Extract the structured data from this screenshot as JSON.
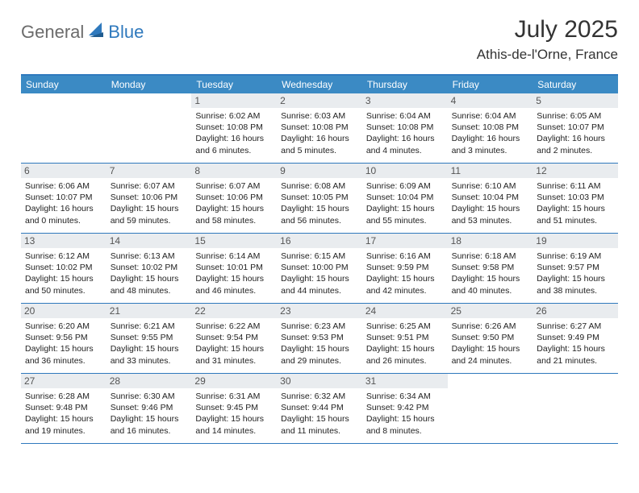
{
  "brand": {
    "general": "General",
    "blue": "Blue",
    "accent_color": "#2f79bd",
    "general_color": "#6b6b6b"
  },
  "title": "July 2025",
  "location": "Athis-de-l'Orne, France",
  "colors": {
    "header_bg": "#3b8ac4",
    "header_text": "#ffffff",
    "daynum_bg": "#e9ecef",
    "border": "#2f79bd",
    "page_bg": "#ffffff",
    "text": "#222222"
  },
  "weekdays": [
    "Sunday",
    "Monday",
    "Tuesday",
    "Wednesday",
    "Thursday",
    "Friday",
    "Saturday"
  ],
  "weeks": [
    [
      {
        "blank": true
      },
      {
        "blank": true
      },
      {
        "num": "1",
        "sunrise": "Sunrise: 6:02 AM",
        "sunset": "Sunset: 10:08 PM",
        "d1": "Daylight: 16 hours",
        "d2": "and 6 minutes."
      },
      {
        "num": "2",
        "sunrise": "Sunrise: 6:03 AM",
        "sunset": "Sunset: 10:08 PM",
        "d1": "Daylight: 16 hours",
        "d2": "and 5 minutes."
      },
      {
        "num": "3",
        "sunrise": "Sunrise: 6:04 AM",
        "sunset": "Sunset: 10:08 PM",
        "d1": "Daylight: 16 hours",
        "d2": "and 4 minutes."
      },
      {
        "num": "4",
        "sunrise": "Sunrise: 6:04 AM",
        "sunset": "Sunset: 10:08 PM",
        "d1": "Daylight: 16 hours",
        "d2": "and 3 minutes."
      },
      {
        "num": "5",
        "sunrise": "Sunrise: 6:05 AM",
        "sunset": "Sunset: 10:07 PM",
        "d1": "Daylight: 16 hours",
        "d2": "and 2 minutes."
      }
    ],
    [
      {
        "num": "6",
        "sunrise": "Sunrise: 6:06 AM",
        "sunset": "Sunset: 10:07 PM",
        "d1": "Daylight: 16 hours",
        "d2": "and 0 minutes."
      },
      {
        "num": "7",
        "sunrise": "Sunrise: 6:07 AM",
        "sunset": "Sunset: 10:06 PM",
        "d1": "Daylight: 15 hours",
        "d2": "and 59 minutes."
      },
      {
        "num": "8",
        "sunrise": "Sunrise: 6:07 AM",
        "sunset": "Sunset: 10:06 PM",
        "d1": "Daylight: 15 hours",
        "d2": "and 58 minutes."
      },
      {
        "num": "9",
        "sunrise": "Sunrise: 6:08 AM",
        "sunset": "Sunset: 10:05 PM",
        "d1": "Daylight: 15 hours",
        "d2": "and 56 minutes."
      },
      {
        "num": "10",
        "sunrise": "Sunrise: 6:09 AM",
        "sunset": "Sunset: 10:04 PM",
        "d1": "Daylight: 15 hours",
        "d2": "and 55 minutes."
      },
      {
        "num": "11",
        "sunrise": "Sunrise: 6:10 AM",
        "sunset": "Sunset: 10:04 PM",
        "d1": "Daylight: 15 hours",
        "d2": "and 53 minutes."
      },
      {
        "num": "12",
        "sunrise": "Sunrise: 6:11 AM",
        "sunset": "Sunset: 10:03 PM",
        "d1": "Daylight: 15 hours",
        "d2": "and 51 minutes."
      }
    ],
    [
      {
        "num": "13",
        "sunrise": "Sunrise: 6:12 AM",
        "sunset": "Sunset: 10:02 PM",
        "d1": "Daylight: 15 hours",
        "d2": "and 50 minutes."
      },
      {
        "num": "14",
        "sunrise": "Sunrise: 6:13 AM",
        "sunset": "Sunset: 10:02 PM",
        "d1": "Daylight: 15 hours",
        "d2": "and 48 minutes."
      },
      {
        "num": "15",
        "sunrise": "Sunrise: 6:14 AM",
        "sunset": "Sunset: 10:01 PM",
        "d1": "Daylight: 15 hours",
        "d2": "and 46 minutes."
      },
      {
        "num": "16",
        "sunrise": "Sunrise: 6:15 AM",
        "sunset": "Sunset: 10:00 PM",
        "d1": "Daylight: 15 hours",
        "d2": "and 44 minutes."
      },
      {
        "num": "17",
        "sunrise": "Sunrise: 6:16 AM",
        "sunset": "Sunset: 9:59 PM",
        "d1": "Daylight: 15 hours",
        "d2": "and 42 minutes."
      },
      {
        "num": "18",
        "sunrise": "Sunrise: 6:18 AM",
        "sunset": "Sunset: 9:58 PM",
        "d1": "Daylight: 15 hours",
        "d2": "and 40 minutes."
      },
      {
        "num": "19",
        "sunrise": "Sunrise: 6:19 AM",
        "sunset": "Sunset: 9:57 PM",
        "d1": "Daylight: 15 hours",
        "d2": "and 38 minutes."
      }
    ],
    [
      {
        "num": "20",
        "sunrise": "Sunrise: 6:20 AM",
        "sunset": "Sunset: 9:56 PM",
        "d1": "Daylight: 15 hours",
        "d2": "and 36 minutes."
      },
      {
        "num": "21",
        "sunrise": "Sunrise: 6:21 AM",
        "sunset": "Sunset: 9:55 PM",
        "d1": "Daylight: 15 hours",
        "d2": "and 33 minutes."
      },
      {
        "num": "22",
        "sunrise": "Sunrise: 6:22 AM",
        "sunset": "Sunset: 9:54 PM",
        "d1": "Daylight: 15 hours",
        "d2": "and 31 minutes."
      },
      {
        "num": "23",
        "sunrise": "Sunrise: 6:23 AM",
        "sunset": "Sunset: 9:53 PM",
        "d1": "Daylight: 15 hours",
        "d2": "and 29 minutes."
      },
      {
        "num": "24",
        "sunrise": "Sunrise: 6:25 AM",
        "sunset": "Sunset: 9:51 PM",
        "d1": "Daylight: 15 hours",
        "d2": "and 26 minutes."
      },
      {
        "num": "25",
        "sunrise": "Sunrise: 6:26 AM",
        "sunset": "Sunset: 9:50 PM",
        "d1": "Daylight: 15 hours",
        "d2": "and 24 minutes."
      },
      {
        "num": "26",
        "sunrise": "Sunrise: 6:27 AM",
        "sunset": "Sunset: 9:49 PM",
        "d1": "Daylight: 15 hours",
        "d2": "and 21 minutes."
      }
    ],
    [
      {
        "num": "27",
        "sunrise": "Sunrise: 6:28 AM",
        "sunset": "Sunset: 9:48 PM",
        "d1": "Daylight: 15 hours",
        "d2": "and 19 minutes."
      },
      {
        "num": "28",
        "sunrise": "Sunrise: 6:30 AM",
        "sunset": "Sunset: 9:46 PM",
        "d1": "Daylight: 15 hours",
        "d2": "and 16 minutes."
      },
      {
        "num": "29",
        "sunrise": "Sunrise: 6:31 AM",
        "sunset": "Sunset: 9:45 PM",
        "d1": "Daylight: 15 hours",
        "d2": "and 14 minutes."
      },
      {
        "num": "30",
        "sunrise": "Sunrise: 6:32 AM",
        "sunset": "Sunset: 9:44 PM",
        "d1": "Daylight: 15 hours",
        "d2": "and 11 minutes."
      },
      {
        "num": "31",
        "sunrise": "Sunrise: 6:34 AM",
        "sunset": "Sunset: 9:42 PM",
        "d1": "Daylight: 15 hours",
        "d2": "and 8 minutes."
      },
      {
        "blank": true
      },
      {
        "blank": true
      }
    ]
  ]
}
